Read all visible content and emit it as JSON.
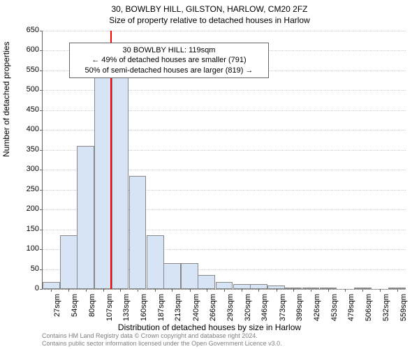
{
  "title_main": "30, BOWLBY HILL, GILSTON, HARLOW, CM20 2FZ",
  "title_sub": "Size of property relative to detached houses in Harlow",
  "ylabel": "Number of detached properties",
  "xlabel": "Distribution of detached houses by size in Harlow",
  "footer_line1": "Contains HM Land Registry data © Crown copyright and database right 2024.",
  "footer_line2": "Contains public sector information licensed under the Open Government Licence v3.0.",
  "chart": {
    "type": "histogram",
    "ylim": [
      0,
      650
    ],
    "ytick_step": 50,
    "xlim": [
      14,
      572
    ],
    "xtick_labels": [
      "27sqm",
      "54sqm",
      "80sqm",
      "107sqm",
      "133sqm",
      "160sqm",
      "187sqm",
      "213sqm",
      "240sqm",
      "266sqm",
      "293sqm",
      "320sqm",
      "346sqm",
      "373sqm",
      "399sqm",
      "426sqm",
      "453sqm",
      "479sqm",
      "506sqm",
      "532sqm",
      "559sqm"
    ],
    "xtick_positions": [
      27,
      54,
      80,
      107,
      133,
      160,
      187,
      213,
      240,
      266,
      293,
      320,
      346,
      373,
      399,
      426,
      453,
      479,
      506,
      532,
      559
    ],
    "bar_color": "#d6e4f5",
    "bar_border_color": "#888888",
    "grid_color": "#cccccc",
    "background_color": "#ffffff",
    "bar_width_data": 26.6,
    "bars": [
      {
        "center": 27,
        "value": 18
      },
      {
        "center": 54,
        "value": 135
      },
      {
        "center": 80,
        "value": 360
      },
      {
        "center": 107,
        "value": 535
      },
      {
        "center": 133,
        "value": 535
      },
      {
        "center": 160,
        "value": 285
      },
      {
        "center": 187,
        "value": 135
      },
      {
        "center": 213,
        "value": 65
      },
      {
        "center": 240,
        "value": 65
      },
      {
        "center": 266,
        "value": 35
      },
      {
        "center": 293,
        "value": 18
      },
      {
        "center": 320,
        "value": 12
      },
      {
        "center": 346,
        "value": 12
      },
      {
        "center": 373,
        "value": 8
      },
      {
        "center": 399,
        "value": 4
      },
      {
        "center": 426,
        "value": 4
      },
      {
        "center": 453,
        "value": 4
      },
      {
        "center": 479,
        "value": 0
      },
      {
        "center": 506,
        "value": 3
      },
      {
        "center": 532,
        "value": 0
      },
      {
        "center": 559,
        "value": 2
      }
    ],
    "reference_line": {
      "x": 119,
      "color": "#ff0000",
      "width": 2
    },
    "annotation": {
      "line1": "30 BOWLBY HILL: 119sqm",
      "line2": "← 49% of detached houses are smaller (791)",
      "line3": "50% of semi-detached houses are larger (819) →",
      "border_color": "#666666",
      "bg_color": "#ffffff",
      "fontsize": 11,
      "x_center_data": 205,
      "y_top_data": 620
    }
  }
}
